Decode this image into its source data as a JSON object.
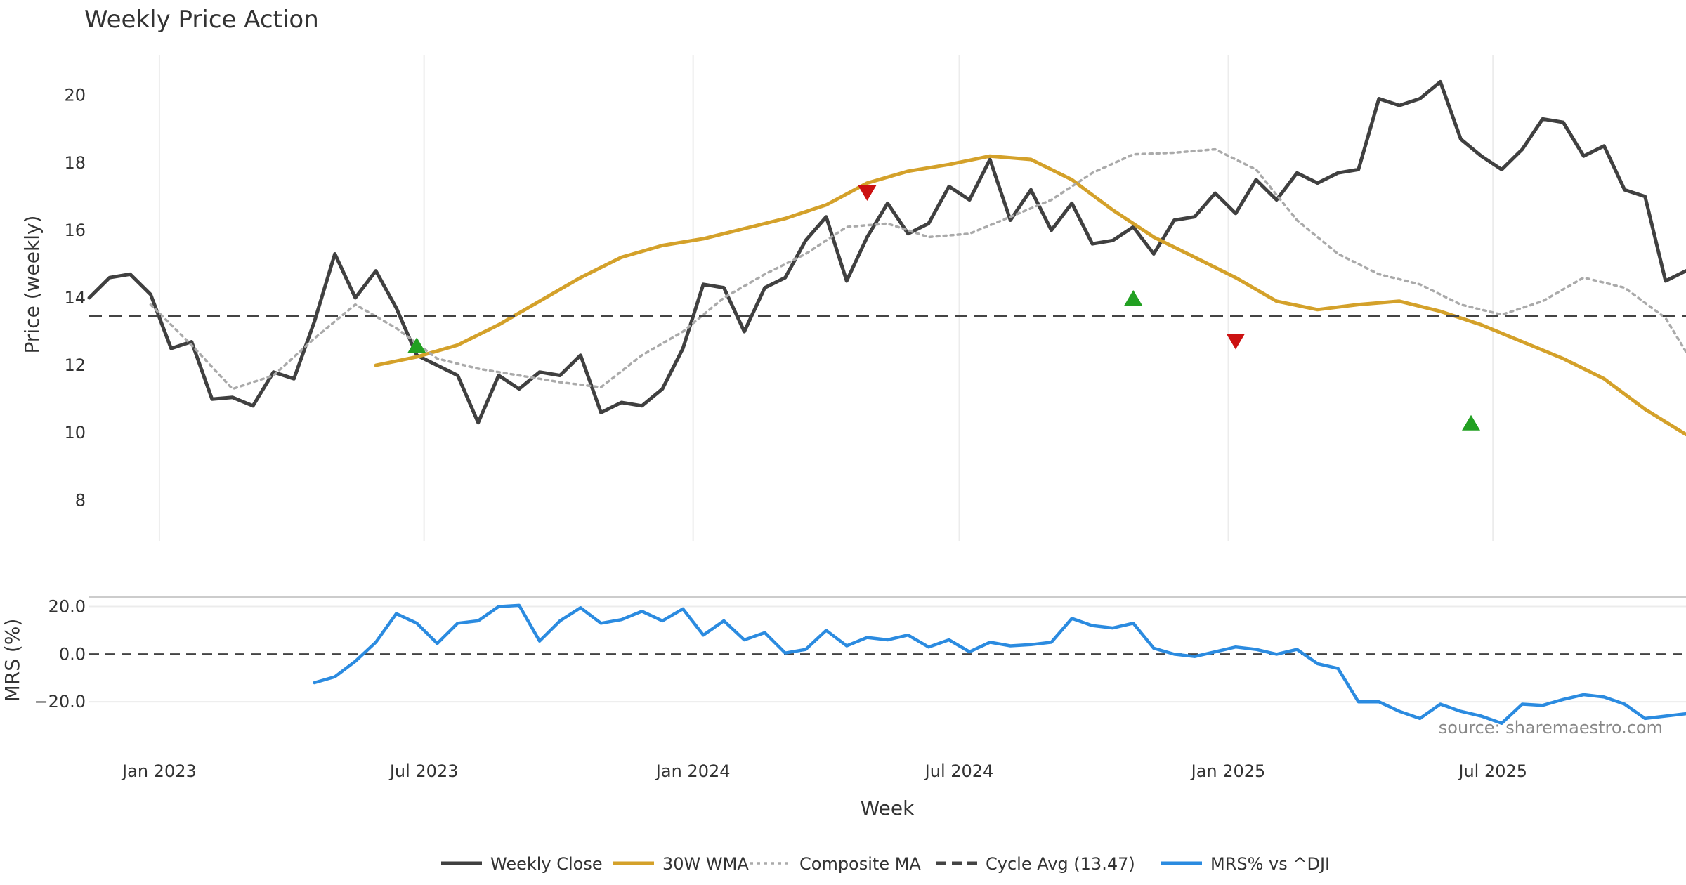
{
  "chart_data": {
    "type": "line",
    "title": "Weekly Price Action",
    "xlabel": "Week",
    "source": "source: sharemaestro.com",
    "x_range": [
      "2022-11-14",
      "2025-11-10"
    ],
    "x_ticks": [
      {
        "date": "2023-01-01",
        "label": "Jan 2023"
      },
      {
        "date": "2023-07-01",
        "label": "Jul 2023"
      },
      {
        "date": "2024-01-01",
        "label": "Jan 2024"
      },
      {
        "date": "2024-07-01",
        "label": "Jul 2024"
      },
      {
        "date": "2025-01-01",
        "label": "Jan 2025"
      },
      {
        "date": "2025-07-01",
        "label": "Jul 2025"
      }
    ],
    "price_panel": {
      "ylabel": "Price (weekly)",
      "ylim": [
        6.8,
        21.2
      ],
      "y_ticks": [
        8,
        10,
        12,
        14,
        16,
        18,
        20
      ],
      "grid": "vertical",
      "series": [
        {
          "name": "Weekly Close",
          "color": "#404040",
          "style": "solid",
          "points": [
            [
              "2022-11-14",
              14.0
            ],
            [
              "2022-11-28",
              14.6
            ],
            [
              "2022-12-12",
              14.7
            ],
            [
              "2022-12-26",
              14.1
            ],
            [
              "2023-01-09",
              12.5
            ],
            [
              "2023-01-23",
              12.7
            ],
            [
              "2023-02-06",
              11.0
            ],
            [
              "2023-02-20",
              11.05
            ],
            [
              "2023-03-06",
              10.8
            ],
            [
              "2023-03-20",
              11.8
            ],
            [
              "2023-04-03",
              11.6
            ],
            [
              "2023-04-17",
              13.3
            ],
            [
              "2023-05-01",
              15.3
            ],
            [
              "2023-05-15",
              14.0
            ],
            [
              "2023-05-29",
              14.8
            ],
            [
              "2023-06-12",
              13.7
            ],
            [
              "2023-06-26",
              12.3
            ],
            [
              "2023-07-10",
              12.0
            ],
            [
              "2023-07-24",
              11.7
            ],
            [
              "2023-08-07",
              10.3
            ],
            [
              "2023-08-21",
              11.7
            ],
            [
              "2023-09-04",
              11.3
            ],
            [
              "2023-09-18",
              11.8
            ],
            [
              "2023-10-02",
              11.7
            ],
            [
              "2023-10-16",
              12.3
            ],
            [
              "2023-10-30",
              10.6
            ],
            [
              "2023-11-13",
              10.9
            ],
            [
              "2023-11-27",
              10.8
            ],
            [
              "2023-12-11",
              11.3
            ],
            [
              "2023-12-25",
              12.5
            ],
            [
              "2024-01-08",
              14.4
            ],
            [
              "2024-01-22",
              14.3
            ],
            [
              "2024-02-05",
              13.0
            ],
            [
              "2024-02-19",
              14.3
            ],
            [
              "2024-03-04",
              14.6
            ],
            [
              "2024-03-18",
              15.7
            ],
            [
              "2024-04-01",
              16.4
            ],
            [
              "2024-04-15",
              14.5
            ],
            [
              "2024-04-29",
              15.8
            ],
            [
              "2024-05-13",
              16.8
            ],
            [
              "2024-05-27",
              15.9
            ],
            [
              "2024-06-10",
              16.2
            ],
            [
              "2024-06-24",
              17.3
            ],
            [
              "2024-07-08",
              16.9
            ],
            [
              "2024-07-22",
              18.1
            ],
            [
              "2024-08-05",
              16.3
            ],
            [
              "2024-08-19",
              17.2
            ],
            [
              "2024-09-02",
              16.0
            ],
            [
              "2024-09-16",
              16.8
            ],
            [
              "2024-09-30",
              15.6
            ],
            [
              "2024-10-14",
              15.7
            ],
            [
              "2024-10-28",
              16.1
            ],
            [
              "2024-11-11",
              15.3
            ],
            [
              "2024-11-25",
              16.3
            ],
            [
              "2024-12-09",
              16.4
            ],
            [
              "2024-12-23",
              17.1
            ],
            [
              "2025-01-06",
              16.5
            ],
            [
              "2025-01-20",
              17.5
            ],
            [
              "2025-02-03",
              16.9
            ],
            [
              "2025-02-17",
              17.7
            ],
            [
              "2025-03-03",
              17.4
            ],
            [
              "2025-03-17",
              17.7
            ],
            [
              "2025-03-31",
              17.8
            ],
            [
              "2025-04-14",
              19.9
            ],
            [
              "2025-04-28",
              19.7
            ],
            [
              "2025-05-12",
              19.9
            ],
            [
              "2025-05-26",
              20.4
            ],
            [
              "2025-06-09",
              18.7
            ],
            [
              "2025-06-23",
              18.2
            ],
            [
              "2025-07-07",
              17.8
            ],
            [
              "2025-07-21",
              18.4
            ],
            [
              "2025-08-04",
              19.3
            ],
            [
              "2025-08-18",
              19.2
            ],
            [
              "2025-09-01",
              18.2
            ],
            [
              "2025-09-15",
              18.5
            ],
            [
              "2025-09-29",
              17.2
            ],
            [
              "2025-10-13",
              17.0
            ],
            [
              "2025-10-27",
              14.5
            ],
            [
              "2025-11-10",
              14.8
            ]
          ]
        },
        {
          "name": "30W WMA",
          "color": "#d4a12a",
          "style": "solid",
          "points": [
            [
              "2023-05-29",
              12.0
            ],
            [
              "2023-06-26",
              12.25
            ],
            [
              "2023-07-24",
              12.6
            ],
            [
              "2023-08-21",
              13.2
            ],
            [
              "2023-09-18",
              13.9
            ],
            [
              "2023-10-16",
              14.6
            ],
            [
              "2023-11-13",
              15.2
            ],
            [
              "2023-12-11",
              15.55
            ],
            [
              "2024-01-08",
              15.75
            ],
            [
              "2024-02-05",
              16.05
            ],
            [
              "2024-03-04",
              16.35
            ],
            [
              "2024-04-01",
              16.75
            ],
            [
              "2024-04-29",
              17.4
            ],
            [
              "2024-05-27",
              17.75
            ],
            [
              "2024-06-24",
              17.95
            ],
            [
              "2024-07-22",
              18.2
            ],
            [
              "2024-08-19",
              18.1
            ],
            [
              "2024-09-16",
              17.5
            ],
            [
              "2024-10-14",
              16.6
            ],
            [
              "2024-11-11",
              15.8
            ],
            [
              "2024-12-09",
              15.2
            ],
            [
              "2025-01-06",
              14.6
            ],
            [
              "2025-02-03",
              13.9
            ],
            [
              "2025-03-03",
              13.65
            ],
            [
              "2025-03-31",
              13.8
            ],
            [
              "2025-04-28",
              13.9
            ],
            [
              "2025-05-26",
              13.6
            ],
            [
              "2025-06-23",
              13.2
            ],
            [
              "2025-07-21",
              12.7
            ],
            [
              "2025-08-18",
              12.2
            ],
            [
              "2025-09-15",
              11.6
            ],
            [
              "2025-10-13",
              10.7
            ],
            [
              "2025-11-10",
              9.95
            ]
          ]
        },
        {
          "name": "Composite MA",
          "color": "#aaaaaa",
          "style": "dotted",
          "points": [
            [
              "2022-12-26",
              13.8
            ],
            [
              "2023-01-23",
              12.6
            ],
            [
              "2023-02-20",
              11.3
            ],
            [
              "2023-03-20",
              11.7
            ],
            [
              "2023-04-17",
              12.8
            ],
            [
              "2023-05-15",
              13.8
            ],
            [
              "2023-06-12",
              13.1
            ],
            [
              "2023-07-10",
              12.2
            ],
            [
              "2023-08-07",
              11.9
            ],
            [
              "2023-09-04",
              11.7
            ],
            [
              "2023-10-02",
              11.5
            ],
            [
              "2023-10-30",
              11.35
            ],
            [
              "2023-11-27",
              12.3
            ],
            [
              "2023-12-25",
              13.0
            ],
            [
              "2024-01-22",
              14.0
            ],
            [
              "2024-02-19",
              14.7
            ],
            [
              "2024-03-18",
              15.3
            ],
            [
              "2024-04-15",
              16.1
            ],
            [
              "2024-05-13",
              16.2
            ],
            [
              "2024-06-10",
              15.8
            ],
            [
              "2024-07-08",
              15.9
            ],
            [
              "2024-08-05",
              16.4
            ],
            [
              "2024-09-02",
              16.9
            ],
            [
              "2024-09-30",
              17.7
            ],
            [
              "2024-10-28",
              18.25
            ],
            [
              "2024-11-25",
              18.3
            ],
            [
              "2024-12-23",
              18.4
            ],
            [
              "2025-01-20",
              17.8
            ],
            [
              "2025-02-17",
              16.3
            ],
            [
              "2025-03-17",
              15.3
            ],
            [
              "2025-04-14",
              14.7
            ],
            [
              "2025-05-12",
              14.4
            ],
            [
              "2025-06-09",
              13.8
            ],
            [
              "2025-07-07",
              13.5
            ],
            [
              "2025-08-04",
              13.9
            ],
            [
              "2025-09-01",
              14.6
            ],
            [
              "2025-09-29",
              14.3
            ],
            [
              "2025-10-27",
              13.4
            ],
            [
              "2025-11-10",
              12.4
            ]
          ]
        },
        {
          "name": "Cycle Avg (13.47)",
          "color": "#444444",
          "style": "dashed",
          "value": 13.47
        }
      ],
      "markers": [
        {
          "date": "2023-06-26",
          "price": 12.6,
          "kind": "up",
          "color": "#22a022"
        },
        {
          "date": "2024-04-29",
          "price": 17.1,
          "kind": "down",
          "color": "#cc1111"
        },
        {
          "date": "2024-10-28",
          "price": 14.0,
          "kind": "up",
          "color": "#22a022"
        },
        {
          "date": "2025-01-06",
          "price": 12.7,
          "kind": "down",
          "color": "#cc1111"
        },
        {
          "date": "2025-06-16",
          "price": 10.3,
          "kind": "up",
          "color": "#22a022"
        }
      ]
    },
    "mrs_panel": {
      "ylabel": "MRS (%)",
      "ylim": [
        -35,
        24
      ],
      "y_ticks": [
        20.0,
        0.0,
        -20.0
      ],
      "y_tick_labels": [
        "20.0",
        "0.0",
        "−20.0"
      ],
      "series": [
        {
          "name": "MRS% vs ^DJI",
          "color": "#2b8be0",
          "style": "solid",
          "points": [
            [
              "2023-04-17",
              -12.0
            ],
            [
              "2023-05-01",
              -9.5
            ],
            [
              "2023-05-15",
              -3.0
            ],
            [
              "2023-05-29",
              5.0
            ],
            [
              "2023-06-12",
              17.0
            ],
            [
              "2023-06-26",
              13.0
            ],
            [
              "2023-07-10",
              4.5
            ],
            [
              "2023-07-24",
              13.0
            ],
            [
              "2023-08-07",
              14.0
            ],
            [
              "2023-08-21",
              20.0
            ],
            [
              "2023-09-04",
              20.5
            ],
            [
              "2023-09-18",
              5.5
            ],
            [
              "2023-10-02",
              14.0
            ],
            [
              "2023-10-16",
              19.5
            ],
            [
              "2023-10-30",
              13.0
            ],
            [
              "2023-11-13",
              14.5
            ],
            [
              "2023-11-27",
              18.0
            ],
            [
              "2023-12-11",
              14.0
            ],
            [
              "2023-12-25",
              19.0
            ],
            [
              "2024-01-08",
              8.0
            ],
            [
              "2024-01-22",
              14.0
            ],
            [
              "2024-02-05",
              6.0
            ],
            [
              "2024-02-19",
              9.0
            ],
            [
              "2024-03-04",
              0.5
            ],
            [
              "2024-03-18",
              2.0
            ],
            [
              "2024-04-01",
              10.0
            ],
            [
              "2024-04-15",
              3.5
            ],
            [
              "2024-04-29",
              7.0
            ],
            [
              "2024-05-13",
              6.0
            ],
            [
              "2024-05-27",
              8.0
            ],
            [
              "2024-06-10",
              3.0
            ],
            [
              "2024-06-24",
              6.0
            ],
            [
              "2024-07-08",
              1.0
            ],
            [
              "2024-07-22",
              5.0
            ],
            [
              "2024-08-05",
              3.5
            ],
            [
              "2024-08-19",
              4.0
            ],
            [
              "2024-09-02",
              5.0
            ],
            [
              "2024-09-16",
              15.0
            ],
            [
              "2024-09-30",
              12.0
            ],
            [
              "2024-10-14",
              11.0
            ],
            [
              "2024-10-28",
              13.0
            ],
            [
              "2024-11-11",
              2.5
            ],
            [
              "2024-11-25",
              0.0
            ],
            [
              "2024-12-09",
              -1.0
            ],
            [
              "2024-12-23",
              1.0
            ],
            [
              "2025-01-06",
              3.0
            ],
            [
              "2025-01-20",
              2.0
            ],
            [
              "2025-02-03",
              0.0
            ],
            [
              "2025-02-17",
              2.0
            ],
            [
              "2025-03-03",
              -4.0
            ],
            [
              "2025-03-17",
              -6.0
            ],
            [
              "2025-03-31",
              -20.0
            ],
            [
              "2025-04-14",
              -20.0
            ],
            [
              "2025-04-28",
              -24.0
            ],
            [
              "2025-05-12",
              -27.0
            ],
            [
              "2025-05-26",
              -21.0
            ],
            [
              "2025-06-09",
              -24.0
            ],
            [
              "2025-06-23",
              -26.0
            ],
            [
              "2025-07-07",
              -29.0
            ],
            [
              "2025-07-21",
              -21.0
            ],
            [
              "2025-08-04",
              -21.5
            ],
            [
              "2025-08-18",
              -19.0
            ],
            [
              "2025-09-01",
              -17.0
            ],
            [
              "2025-09-15",
              -18.0
            ],
            [
              "2025-09-29",
              -21.0
            ],
            [
              "2025-10-13",
              -27.0
            ],
            [
              "2025-10-27",
              -26.0
            ],
            [
              "2025-11-10",
              -25.0
            ]
          ]
        }
      ]
    },
    "legend": {
      "placement": "bottom",
      "items": [
        {
          "label": "Weekly Close",
          "color": "#404040",
          "style": "solid"
        },
        {
          "label": "30W WMA",
          "color": "#d4a12a",
          "style": "solid"
        },
        {
          "label": "Composite MA",
          "color": "#aaaaaa",
          "style": "dotted"
        },
        {
          "label": "Cycle Avg (13.47)",
          "color": "#444444",
          "style": "dashed"
        },
        {
          "label": "MRS% vs ^DJI",
          "color": "#2b8be0",
          "style": "solid"
        }
      ]
    }
  }
}
